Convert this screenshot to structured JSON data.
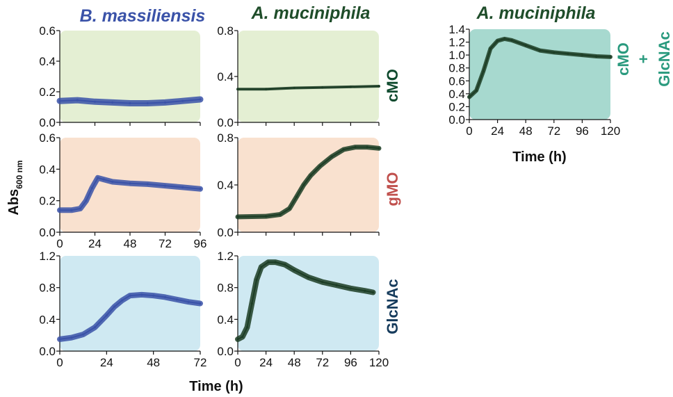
{
  "figure": {
    "header_bm": "B. massiliensis",
    "header_am": "A. muciniphila",
    "header_right": "A. muciniphila",
    "ylabel_main": "Abs",
    "ylabel_sub": "600 nm",
    "xlabel": "Time (h)",
    "right_xlabel": "Time (h)",
    "cond_cmo": "cMO",
    "cond_gmo": "gMO",
    "cond_glcnac": "GlcNAc",
    "cond_right_1": "cMO",
    "cond_right_2": "+",
    "cond_right_3": "GlcNAc"
  },
  "colors": {
    "bm_series": "#3a52a8",
    "am_series": "#1c3d25",
    "header_bm": "#3a52a8",
    "header_am": "#1f4d2a",
    "cond_cmo": "#0f4a2e",
    "cond_gmo": "#c0504d",
    "cond_glcnac": "#163b5c",
    "cond_right": "#2a9a7e",
    "bg_cmo": "#e4efd3",
    "bg_gmo": "#f9e1cf",
    "bg_glcnac": "#cfe9f2",
    "bg_right": "#a7d9cf"
  },
  "chart_data": [
    {
      "id": "bm-cmo",
      "type": "line",
      "organism": "B. massiliensis",
      "condition": "cMO",
      "ylim": [
        0,
        0.6
      ],
      "yticks": [
        "0.0",
        "0.2",
        "0.4",
        "0.6"
      ],
      "xlim": [
        0,
        96
      ],
      "xticks": [
        "0",
        "24",
        "48",
        "72",
        "96"
      ],
      "show_xticklabels": false,
      "series": [
        {
          "x": [
            0,
            12,
            24,
            36,
            48,
            60,
            72,
            84,
            96
          ],
          "y": [
            0.14,
            0.145,
            0.135,
            0.13,
            0.125,
            0.125,
            0.13,
            0.14,
            0.15
          ],
          "error": [
            0.01,
            0.01,
            0.01,
            0.01,
            0.01,
            0.015,
            0.02,
            0.03,
            0.035
          ]
        }
      ]
    },
    {
      "id": "am-cmo",
      "type": "line",
      "organism": "A. muciniphila",
      "condition": "cMO",
      "ylim": [
        0,
        0.8
      ],
      "yticks": [
        "0.0",
        "0.4",
        "0.8"
      ],
      "xlim": [
        0,
        120
      ],
      "xticks": [
        "0",
        "24",
        "48",
        "72",
        "96",
        "120"
      ],
      "show_xticklabels": false,
      "series": [
        {
          "x": [
            0,
            24,
            48,
            72,
            96,
            120
          ],
          "y": [
            0.29,
            0.29,
            0.3,
            0.305,
            0.31,
            0.315
          ],
          "error": [
            0.005,
            0.005,
            0.005,
            0.005,
            0.005,
            0.005
          ]
        }
      ]
    },
    {
      "id": "bm-gmo",
      "type": "line",
      "organism": "B. massiliensis",
      "condition": "gMO",
      "ylim": [
        0,
        0.6
      ],
      "yticks": [
        "0.0",
        "0.2",
        "0.4",
        "0.6"
      ],
      "xlim": [
        0,
        96
      ],
      "xticks": [
        "0",
        "24",
        "48",
        "72",
        "96"
      ],
      "show_xticklabels": true,
      "series": [
        {
          "x": [
            0,
            8,
            14,
            18,
            22,
            26,
            30,
            36,
            48,
            60,
            72,
            84,
            96
          ],
          "y": [
            0.14,
            0.14,
            0.15,
            0.2,
            0.28,
            0.345,
            0.335,
            0.32,
            0.31,
            0.305,
            0.295,
            0.285,
            0.275
          ],
          "error": [
            0.01,
            0.01,
            0.015,
            0.02,
            0.02,
            0.015,
            0.01,
            0.01,
            0.01,
            0.01,
            0.015,
            0.015,
            0.02
          ]
        }
      ]
    },
    {
      "id": "am-gmo",
      "type": "line",
      "organism": "A. muciniphila",
      "condition": "gMO",
      "ylim": [
        0,
        0.8
      ],
      "yticks": [
        "0.0",
        "0.4",
        "0.8"
      ],
      "xlim": [
        0,
        120
      ],
      "xticks": [
        "0",
        "24",
        "48",
        "72",
        "96",
        "120"
      ],
      "show_xticklabels": false,
      "series": [
        {
          "x": [
            0,
            24,
            36,
            44,
            50,
            56,
            62,
            70,
            80,
            90,
            100,
            110,
            120
          ],
          "y": [
            0.13,
            0.135,
            0.15,
            0.2,
            0.3,
            0.4,
            0.48,
            0.56,
            0.64,
            0.7,
            0.72,
            0.72,
            0.71
          ],
          "error": [
            0.005,
            0.005,
            0.01,
            0.015,
            0.02,
            0.02,
            0.02,
            0.02,
            0.015,
            0.015,
            0.015,
            0.015,
            0.015
          ]
        }
      ]
    },
    {
      "id": "bm-glcnac",
      "type": "line",
      "organism": "B. massiliensis",
      "condition": "GlcNAc",
      "ylim": [
        0,
        1.2
      ],
      "yticks": [
        "0.0",
        "0.4",
        "0.8",
        "1.2"
      ],
      "xlim": [
        0,
        72
      ],
      "xticks": [
        "0",
        "24",
        "48",
        "72"
      ],
      "show_xticklabels": true,
      "series": [
        {
          "x": [
            0,
            6,
            12,
            18,
            24,
            28,
            32,
            36,
            42,
            48,
            54,
            60,
            66,
            72
          ],
          "y": [
            0.15,
            0.17,
            0.21,
            0.3,
            0.45,
            0.56,
            0.64,
            0.7,
            0.71,
            0.7,
            0.68,
            0.65,
            0.62,
            0.6
          ],
          "error": [
            0.01,
            0.01,
            0.015,
            0.02,
            0.03,
            0.03,
            0.03,
            0.02,
            0.02,
            0.02,
            0.02,
            0.02,
            0.02,
            0.015
          ]
        }
      ]
    },
    {
      "id": "am-glcnac",
      "type": "line",
      "organism": "A. muciniphila",
      "condition": "GlcNAc",
      "ylim": [
        0,
        1.2
      ],
      "yticks": [
        "0.0",
        "0.4",
        "0.8",
        "1.2"
      ],
      "xlim": [
        0,
        120
      ],
      "xticks": [
        "0",
        "24",
        "48",
        "72",
        "96",
        "120"
      ],
      "show_xticklabels": true,
      "series": [
        {
          "x": [
            0,
            4,
            8,
            12,
            16,
            20,
            26,
            32,
            40,
            48,
            60,
            72,
            84,
            96,
            108,
            115
          ],
          "y": [
            0.15,
            0.18,
            0.3,
            0.6,
            0.9,
            1.06,
            1.12,
            1.12,
            1.09,
            1.02,
            0.93,
            0.87,
            0.83,
            0.79,
            0.76,
            0.74
          ],
          "error": [
            0.02,
            0.02,
            0.03,
            0.03,
            0.03,
            0.02,
            0.01,
            0.01,
            0.015,
            0.02,
            0.025,
            0.03,
            0.035,
            0.035,
            0.04,
            0.04
          ]
        }
      ]
    },
    {
      "id": "am-cmo-glcnac",
      "type": "line",
      "organism": "A. muciniphila",
      "condition": "cMO + GlcNAc",
      "ylim": [
        0,
        1.4
      ],
      "yticks": [
        "0.0",
        "0.2",
        "0.4",
        "0.6",
        "0.8",
        "1.0",
        "1.2",
        "1.4"
      ],
      "xlim": [
        0,
        120
      ],
      "xticks": [
        "0",
        "24",
        "48",
        "72",
        "96",
        "120"
      ],
      "show_xticklabels": true,
      "series": [
        {
          "x": [
            0,
            6,
            12,
            18,
            24,
            30,
            36,
            48,
            60,
            72,
            84,
            96,
            108,
            120
          ],
          "y": [
            0.35,
            0.45,
            0.75,
            1.1,
            1.22,
            1.25,
            1.23,
            1.15,
            1.07,
            1.04,
            1.02,
            1.0,
            0.98,
            0.97
          ],
          "error": [
            0.01,
            0.02,
            0.02,
            0.02,
            0.01,
            0.01,
            0.01,
            0.01,
            0.015,
            0.015,
            0.02,
            0.02,
            0.02,
            0.02
          ]
        }
      ]
    }
  ]
}
